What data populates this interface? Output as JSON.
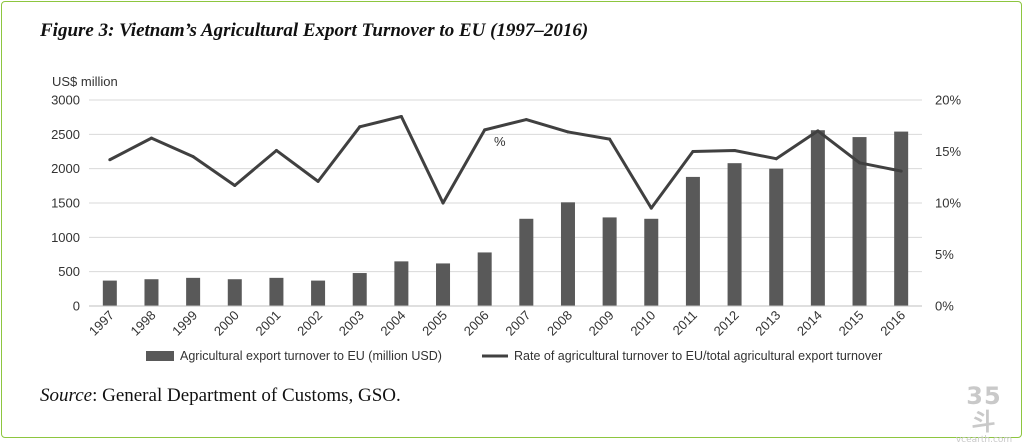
{
  "figure": {
    "title": "Figure 3: Vietnam’s Agricultural Export Turnover to EU (1997–2016)",
    "source_label": "Source",
    "source_text": ": General Department of Customs, GSO."
  },
  "watermark": {
    "logo": "35斗",
    "url": "vcearth.com"
  },
  "colors": {
    "bar": "#595959",
    "line": "#404040",
    "grid": "#d9d9d9",
    "frame": "#8dc63f"
  },
  "chart_data": {
    "type": "bar+line",
    "categories": [
      "1997",
      "1998",
      "1999",
      "2000",
      "2001",
      "2002",
      "2003",
      "2004",
      "2005",
      "2006",
      "2007",
      "2008",
      "2009",
      "2010",
      "2011",
      "2012",
      "2013",
      "2014",
      "2015",
      "2016"
    ],
    "series": [
      {
        "name": "Agricultural export turnover to EU (million USD)",
        "type": "bar",
        "axis": "left",
        "values": [
          370,
          390,
          410,
          390,
          410,
          370,
          480,
          650,
          620,
          780,
          1270,
          1510,
          1290,
          1270,
          1880,
          2080,
          2000,
          2560,
          2460,
          2540
        ]
      },
      {
        "name": "Rate of agricultural turnover to EU/total agricultural export turnover",
        "type": "line",
        "axis": "right",
        "values": [
          14.2,
          16.3,
          14.5,
          11.7,
          15.1,
          12.1,
          17.4,
          18.4,
          10.0,
          17.1,
          18.1,
          16.9,
          16.2,
          9.5,
          15.0,
          15.1,
          14.3,
          17.0,
          13.9,
          13.1
        ]
      }
    ],
    "ylabel": "US$ million",
    "ylim": [
      0,
      3000
    ],
    "yticks": [
      "0",
      "500",
      "1000",
      "1500",
      "2000",
      "2500",
      "3000"
    ],
    "y2lim": [
      0,
      20
    ],
    "y2ticks": [
      "0%",
      "5%",
      "10%",
      "15%",
      "20%"
    ],
    "annotation": "%",
    "grid": true,
    "legend_position": "bottom"
  }
}
